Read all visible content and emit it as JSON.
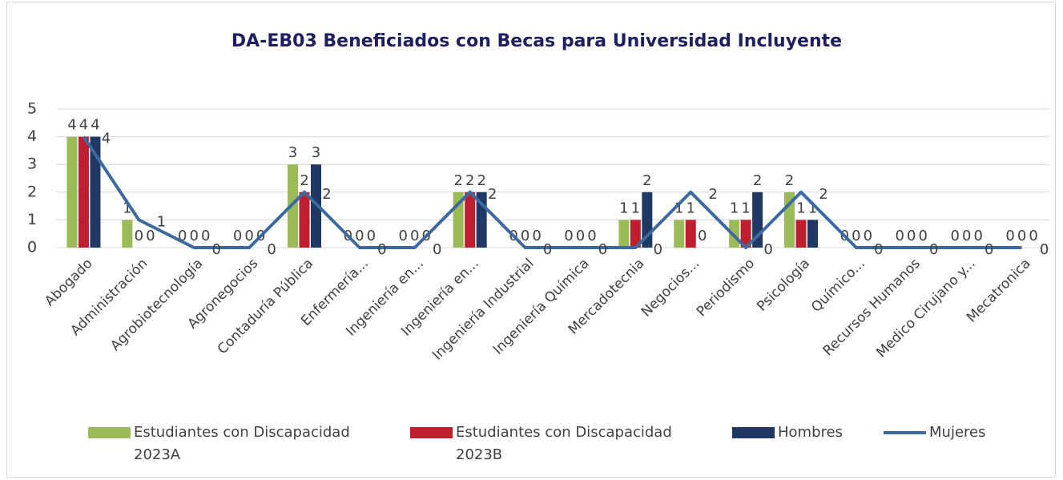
{
  "chart_data": {
    "type": "bar",
    "title": "DA-EB03 Beneficiados con Becas para Universidad Incluyente",
    "categories": [
      "Abogado",
      "Administración",
      "Agrobiotecnología",
      "Agronegocios",
      "Contaduría Pública",
      "Enfermería...",
      "Ingeniería en...",
      "Ingeniería en...",
      "Ingeniería Industrial",
      "Ingeniería Química",
      "Mercadotecnia",
      "Negocios...",
      "Periodismo",
      "Psicología",
      "Químico...",
      "Recursos Humanos",
      "Medico Cirujano y...",
      "Mecatronica"
    ],
    "series": [
      {
        "name": "Estudiantes con Discapacidad 2023A",
        "type": "bar",
        "color": "#9bbb59",
        "values": [
          4,
          1,
          0,
          0,
          3,
          0,
          0,
          2,
          0,
          0,
          1,
          1,
          1,
          2,
          0,
          0,
          0,
          0
        ]
      },
      {
        "name": "Estudiantes con Discapacidad 2023B",
        "type": "bar",
        "color": "#be1e2d",
        "values": [
          4,
          0,
          0,
          0,
          2,
          0,
          0,
          2,
          0,
          0,
          1,
          1,
          1,
          1,
          0,
          0,
          0,
          0
        ]
      },
      {
        "name": "Hombres",
        "type": "bar",
        "color": "#1f3864",
        "values": [
          4,
          0,
          0,
          0,
          3,
          0,
          0,
          2,
          0,
          0,
          2,
          0,
          2,
          1,
          0,
          0,
          0,
          0
        ]
      },
      {
        "name": "Mujeres",
        "type": "line",
        "color": "#3d6a9e",
        "values": [
          4,
          1,
          0,
          0,
          2,
          0,
          0,
          2,
          0,
          0,
          0,
          2,
          0,
          2,
          0,
          0,
          0,
          0
        ]
      }
    ],
    "ylim": [
      0,
      5
    ],
    "yticks": [
      0,
      1,
      2,
      3,
      4,
      5
    ],
    "grid": true,
    "legend": "bottom"
  }
}
